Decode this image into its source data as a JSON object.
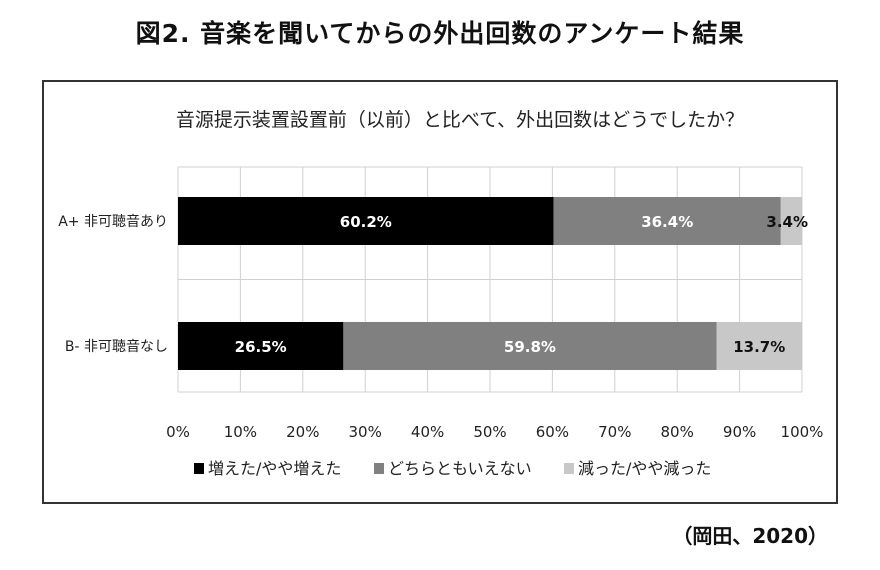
{
  "figure": {
    "title": "図2. 音楽を聞いてからの外出回数のアンケート結果",
    "source": "（岡田、2020）"
  },
  "chart_data": {
    "type": "bar",
    "orientation": "horizontal",
    "stacked": true,
    "title": "音源提示装置設置前（以前）と比べて、外出回数はどうでしたか？",
    "categories": [
      "A+ 非可聴音あり",
      "B- 非可聴音なし"
    ],
    "series": [
      {
        "name": "増えた/やや増えた",
        "color": "#000000",
        "label_color": "#ffffff",
        "values": [
          60.2,
          26.5
        ]
      },
      {
        "name": "どちらともいえない",
        "color": "#808080",
        "label_color": "#ffffff",
        "values": [
          36.4,
          59.8
        ]
      },
      {
        "name": "減った/やや減った",
        "color": "#c8c8c8",
        "label_color": "#111111",
        "values": [
          3.4,
          13.7
        ]
      }
    ],
    "value_format": "percent",
    "xlim": [
      0,
      100
    ],
    "xticks": [
      "0%",
      "10%",
      "20%",
      "30%",
      "40%",
      "50%",
      "60%",
      "70%",
      "80%",
      "90%",
      "100%"
    ],
    "grid": true,
    "legend_position": "bottom"
  }
}
